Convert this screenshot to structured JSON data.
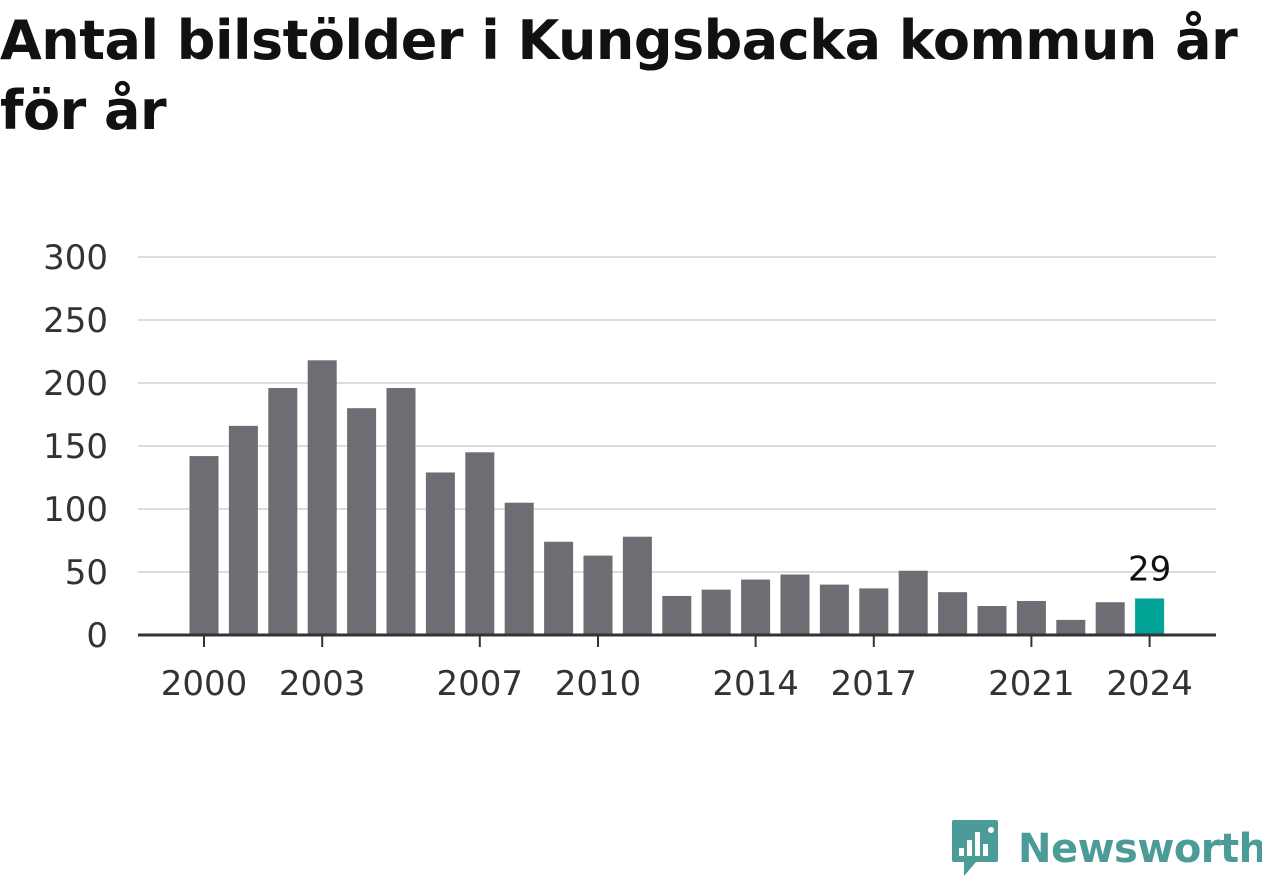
{
  "chart_data": {
    "type": "bar",
    "title": "Antal bilstölder i Kungsbacka kommun år för år",
    "xlabel": "",
    "ylabel": "",
    "categories": [
      "2000",
      "2001",
      "2002",
      "2003",
      "2004",
      "2005",
      "2006",
      "2007",
      "2008",
      "2009",
      "2010",
      "2011",
      "2012",
      "2013",
      "2014",
      "2015",
      "2016",
      "2017",
      "2018",
      "2019",
      "2020",
      "2021",
      "2022",
      "2023",
      "2024"
    ],
    "values": [
      142,
      166,
      196,
      218,
      180,
      196,
      129,
      145,
      105,
      74,
      63,
      78,
      31,
      36,
      44,
      48,
      40,
      37,
      51,
      34,
      23,
      27,
      12,
      26,
      29
    ],
    "ylim": [
      0,
      300
    ],
    "yticks": [
      0,
      50,
      100,
      150,
      200,
      250,
      300
    ],
    "xtick_labels": [
      "2000",
      "2003",
      "2007",
      "2010",
      "2014",
      "2017",
      "2021",
      "2024"
    ],
    "highlight": {
      "category": "2024",
      "label": "29"
    },
    "grid": true,
    "colors": {
      "bar": "#6e6d73",
      "highlight": "#00a396",
      "grid": "#dcdcdc",
      "axis": "#333333"
    }
  },
  "brand": {
    "name": "Newsworthy",
    "icon": "newsworthy-logo-icon",
    "color": "#4b9b98"
  }
}
